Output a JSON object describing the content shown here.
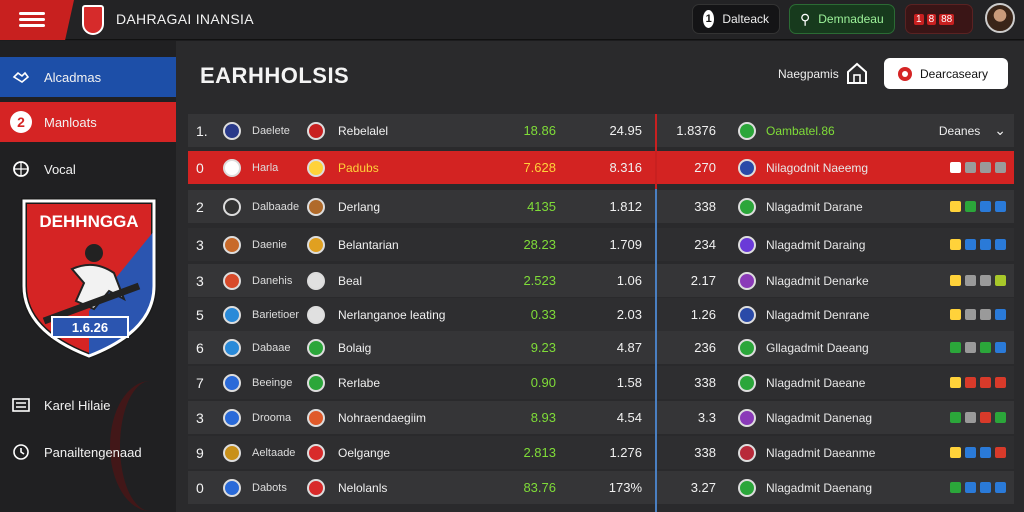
{
  "app": {
    "title": "DAHRAGAI INANSIA"
  },
  "topbar": {
    "pill_dark": {
      "icon": "1",
      "label": "Dalteack"
    },
    "pill_green": {
      "label": "Demnadeau"
    },
    "pill_red": {
      "items": [
        "1",
        "8",
        "88"
      ]
    }
  },
  "sidebar": {
    "items": [
      {
        "label": "Alcadmas",
        "icon": "handshake-icon"
      },
      {
        "label": "Manloats",
        "icon": "2"
      },
      {
        "label": "Vocal",
        "icon": "ball-icon"
      },
      {
        "label": "Karel Hilaie",
        "icon": "list-icon"
      },
      {
        "label": "Panailtengenaad",
        "icon": "clock-icon"
      }
    ],
    "crest": {
      "text": "DEHHNGGA",
      "year": "1.6.26"
    }
  },
  "main": {
    "title": "EARHHOLSIS",
    "header_label": "Naegpamis",
    "primary_button": "Dearcaseary",
    "right_header": "Deanes"
  },
  "table": {
    "rows": [
      {
        "rank": "1.",
        "team1": "Daelete",
        "team2": "Rebelalel",
        "v1": "18.86",
        "v2": "24.95",
        "v3": "1.8376",
        "opp": "Oambatel.86",
        "badge1": "#2a3a8a",
        "badge2": "#c82020",
        "badge3": "#2ba63a",
        "form": []
      },
      {
        "rank": "0",
        "team1": "Harla",
        "team2": "Padubs",
        "v1": "7.628",
        "v2": "8.316",
        "v3": "270",
        "opp": "Nilagodnit Naeemg",
        "badge1": "#ffffff",
        "badge2": "#ffd23a",
        "badge3": "#2a4aa8",
        "form": [
          "#ffffff",
          "#9a9a9a",
          "#9a9a9a",
          "#9a9a9a"
        ]
      },
      {
        "rank": "2",
        "team1": "Dalbaade",
        "team2": "Derlang",
        "v1": "4135",
        "v2": "1.812",
        "v3": "338",
        "opp": "Nlagadmit Darane",
        "badge1": "#333333",
        "badge2": "#b06a2a",
        "badge3": "#2ba63a",
        "form": [
          "#ffd23a",
          "#2ba63a",
          "#2a7ad8",
          "#2a7ad8"
        ]
      },
      {
        "rank": "3",
        "team1": "Daenie",
        "team2": "Belantarian",
        "v1": "28.23",
        "v2": "1.709",
        "v3": "234",
        "opp": "Nlagadmit Daraing",
        "badge1": "#c86a2a",
        "badge2": "#e0a020",
        "badge3": "#6a3ad8",
        "form": [
          "#ffd23a",
          "#2a7ad8",
          "#2a7ad8",
          "#2a7ad8"
        ]
      },
      {
        "rank": "3",
        "team1": "Danehis",
        "team2": "Beal",
        "v1": "2.523",
        "v2": "1.06",
        "v3": "2.17",
        "opp": "Nlagadmit Denarke",
        "badge1": "#d84a2a",
        "badge2": "",
        "badge3": "#8a3ab8",
        "form": [
          "#ffd23a",
          "#9a9a9a",
          "#9a9a9a",
          "#a8c82a"
        ]
      },
      {
        "rank": "5",
        "team1": "Barietioer",
        "team2": "Nerlanganoe leating",
        "v1": "0.33",
        "v2": "2.03",
        "v3": "1.26",
        "opp": "Nlagadmit Denrane",
        "badge1": "#2a8ad8",
        "badge2": "",
        "badge3": "#2a4aa8",
        "form": [
          "#ffd23a",
          "#9a9a9a",
          "#9a9a9a",
          "#2a7ad8"
        ]
      },
      {
        "rank": "6",
        "team1": "Dabaae",
        "team2": "Bolaig",
        "v1": "9.23",
        "v2": "4.87",
        "v3": "236",
        "opp": "Gllagadmit Daeang",
        "badge1": "#2a8ad8",
        "badge2": "#2ba63a",
        "badge3": "#2ba63a",
        "form": [
          "#2ba63a",
          "#9a9a9a",
          "#2ba63a",
          "#2a7ad8"
        ]
      },
      {
        "rank": "7",
        "team1": "Beeinge",
        "team2": "Rerlabe",
        "v1": "0.90",
        "v2": "1.58",
        "v3": "338",
        "opp": "Nlagadmit Daeane",
        "badge1": "#2a6ad8",
        "badge2": "#2ba63a",
        "badge3": "#2ba63a",
        "form": [
          "#ffd23a",
          "#d83a2a",
          "#d83a2a",
          "#d83a2a"
        ]
      },
      {
        "rank": "3",
        "team1": "Drooma",
        "team2": "Nohraendaegiim",
        "v1": "8.93",
        "v2": "4.54",
        "v3": "3.3",
        "opp": "Nlagadmit Danenag",
        "badge1": "#2a6ad8",
        "badge2": "#e05a2a",
        "badge3": "#8a3ab8",
        "form": [
          "#2ba63a",
          "#9a9a9a",
          "#d83a2a",
          "#2ba63a"
        ]
      },
      {
        "rank": "9",
        "team1": "Aeltaade",
        "team2": "Oelgange",
        "v1": "2.813",
        "v2": "1.276",
        "v3": "338",
        "opp": "Nlagadmit Daeanme",
        "badge1": "#c8901a",
        "badge2": "#d82a2a",
        "badge3": "#b82a3a",
        "form": [
          "#ffd23a",
          "#2a7ad8",
          "#2a7ad8",
          "#d83a2a"
        ]
      },
      {
        "rank": "0",
        "team1": "Dabots",
        "team2": "Nelolanls",
        "v1": "83.76",
        "v2": "173%",
        "v3": "3.27",
        "opp": "Nlagadmit Daenang",
        "badge1": "#2a6ad8",
        "badge2": "#d82a2a",
        "badge3": "#2ba63a",
        "form": [
          "#2ba63a",
          "#2a7ad8",
          "#2a7ad8",
          "#2a7ad8"
        ]
      }
    ]
  }
}
